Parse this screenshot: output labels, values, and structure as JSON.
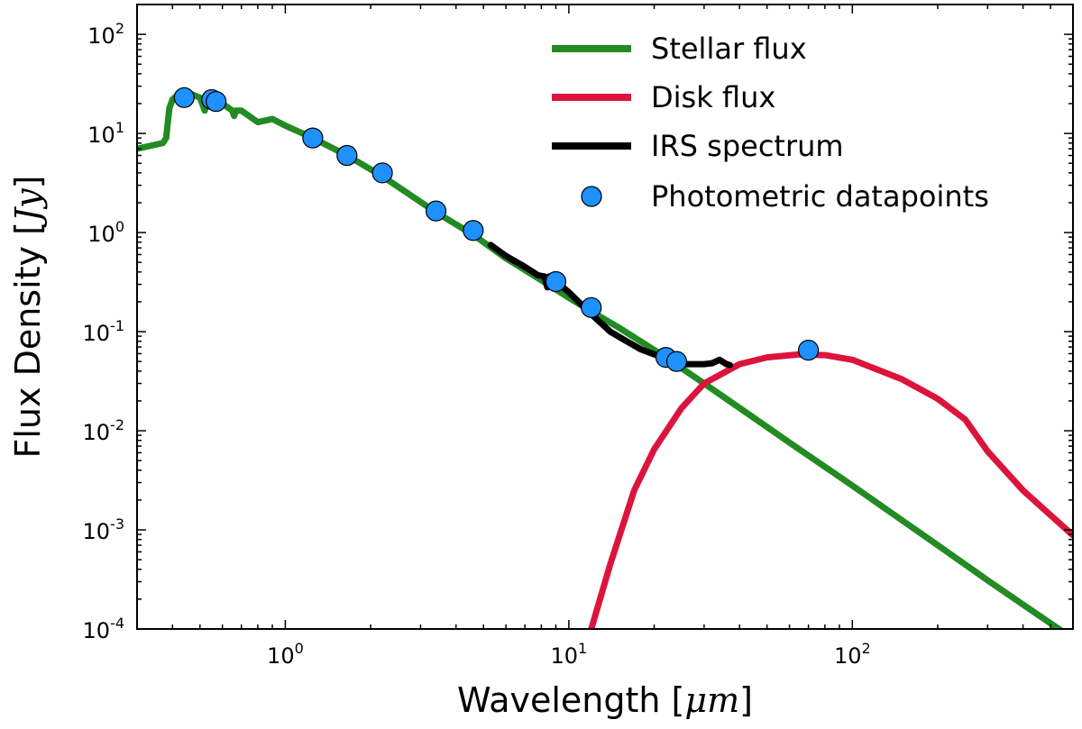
{
  "chart_data": {
    "type": "line",
    "title": "",
    "xlabel": "Wavelength",
    "xlabel_unit": "μm",
    "ylabel": "Flux Density",
    "ylabel_unit": "Jy",
    "xscale": "log",
    "yscale": "log",
    "xlim": [
      0.3,
      600
    ],
    "ylim": [
      0.0001,
      200
    ],
    "grid": false,
    "legend_position": "top-right",
    "x_ticks": [
      {
        "base": "10",
        "exp": "0",
        "value": 1
      },
      {
        "base": "10",
        "exp": "1",
        "value": 10
      },
      {
        "base": "10",
        "exp": "2",
        "value": 100
      }
    ],
    "y_ticks": [
      {
        "base": "10",
        "exp": "-4",
        "value": 0.0001
      },
      {
        "base": "10",
        "exp": "-3",
        "value": 0.001
      },
      {
        "base": "10",
        "exp": "-2",
        "value": 0.01
      },
      {
        "base": "10",
        "exp": "-1",
        "value": 0.1
      },
      {
        "base": "10",
        "exp": "0",
        "value": 1
      },
      {
        "base": "10",
        "exp": "1",
        "value": 10
      },
      {
        "base": "10",
        "exp": "2",
        "value": 100
      }
    ],
    "series": [
      {
        "name": "Stellar flux",
        "kind": "line",
        "color": "#228b22",
        "x": [
          0.3,
          0.37,
          0.38,
          0.39,
          0.4,
          0.42,
          0.45,
          0.5,
          0.52,
          0.53,
          0.55,
          0.6,
          0.65,
          0.66,
          0.67,
          0.7,
          0.8,
          0.9,
          1.0,
          1.25,
          1.65,
          2.2,
          3.4,
          4.6,
          6.0,
          8.0,
          10.0,
          12.0,
          15.0,
          22.0,
          30.0,
          40.0,
          60.0,
          100.0,
          200.0,
          300.0,
          450.0,
          600.0
        ],
        "y": [
          7.0,
          8.0,
          9.0,
          18.0,
          22.0,
          25.0,
          26.0,
          23.0,
          17.0,
          22.0,
          21.0,
          20.0,
          17.0,
          15.0,
          17.0,
          17.0,
          13.0,
          14.0,
          12.0,
          9.0,
          6.0,
          3.7,
          1.6,
          0.95,
          0.55,
          0.33,
          0.22,
          0.16,
          0.11,
          0.055,
          0.03,
          0.017,
          0.0076,
          0.0028,
          0.0007,
          0.00031,
          0.00014,
          8e-05
        ]
      },
      {
        "name": "Disk flux",
        "kind": "line",
        "color": "#dc143c",
        "x": [
          12.0,
          14.0,
          17.0,
          20.0,
          25.0,
          30.0,
          40.0,
          50.0,
          65.0,
          80.0,
          100.0,
          150.0,
          200.0,
          250.0,
          300.0,
          400.0,
          600.0
        ],
        "y": [
          0.0001,
          0.00045,
          0.0025,
          0.0065,
          0.017,
          0.03,
          0.047,
          0.055,
          0.059,
          0.058,
          0.052,
          0.033,
          0.021,
          0.013,
          0.0062,
          0.0025,
          0.00088
        ]
      },
      {
        "name": "IRS spectrum",
        "kind": "line",
        "color": "#000000",
        "x": [
          5.3,
          6.0,
          7.0,
          7.8,
          8.2,
          8.4,
          8.5,
          9.0,
          10.0,
          12.0,
          14.0,
          16.0,
          18.0,
          20.0,
          22.0,
          24.0,
          26.0,
          28.0,
          30.0,
          32.0,
          34.0,
          36.0,
          37.0
        ],
        "y": [
          0.75,
          0.58,
          0.45,
          0.37,
          0.36,
          0.28,
          0.36,
          0.32,
          0.25,
          0.15,
          0.1,
          0.08,
          0.066,
          0.059,
          0.053,
          0.049,
          0.047,
          0.047,
          0.047,
          0.048,
          0.052,
          0.047,
          0.046
        ]
      },
      {
        "name": "Photometric datapoints",
        "kind": "scatter",
        "color": "#1e90ff",
        "x": [
          0.44,
          0.55,
          0.57,
          1.25,
          1.65,
          2.2,
          3.4,
          4.6,
          9.0,
          12.0,
          22.0,
          24.0,
          70.0
        ],
        "y": [
          23.0,
          22.0,
          21.0,
          9.0,
          6.0,
          4.0,
          1.65,
          1.05,
          0.32,
          0.175,
          0.055,
          0.05,
          0.065
        ]
      }
    ]
  }
}
